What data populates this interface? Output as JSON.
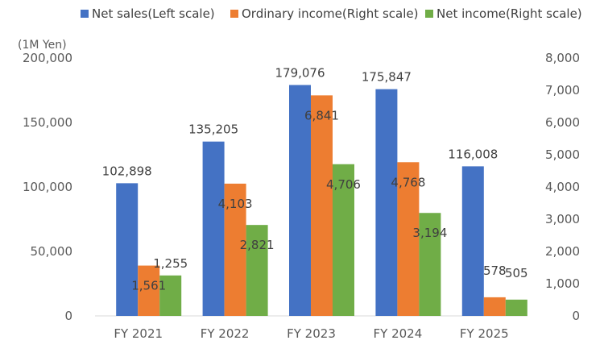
{
  "chart_data": {
    "type": "bar",
    "unit_label": "(1M Yen)",
    "categories": [
      "FY 2021",
      "FY 2022",
      "FY 2023",
      "FY 2024",
      "FY 2025"
    ],
    "series": [
      {
        "name": "Net sales(Left scale)",
        "axis": "left",
        "color": "#4472C4",
        "values": [
          102898,
          135205,
          179076,
          175847,
          116008
        ],
        "labels": [
          "102,898",
          "135,205",
          "179,076",
          "175,847",
          "116,008"
        ]
      },
      {
        "name": "Ordinary income(Right scale)",
        "axis": "right",
        "color": "#ED7D31",
        "values": [
          1561,
          4103,
          6841,
          4768,
          578
        ],
        "labels": [
          "1,561",
          "4,103",
          "6,841",
          "4,768",
          "578"
        ]
      },
      {
        "name": "Net income(Right scale)",
        "axis": "right",
        "color": "#70AD47",
        "values": [
          1255,
          2821,
          4706,
          3194,
          505
        ],
        "labels": [
          "1,255",
          "2,821",
          "4,706",
          "3,194",
          "505"
        ]
      }
    ],
    "y_left": {
      "min": 0,
      "max": 200000,
      "step": 50000,
      "ticks": [
        "0",
        "50,000",
        "100,000",
        "150,000",
        "200,000"
      ]
    },
    "y_right": {
      "min": 0,
      "max": 8000,
      "step": 1000,
      "ticks": [
        "0",
        "1,000",
        "2,000",
        "3,000",
        "4,000",
        "5,000",
        "6,000",
        "7,000",
        "8,000"
      ]
    },
    "grid": false,
    "legend_position": "top"
  }
}
